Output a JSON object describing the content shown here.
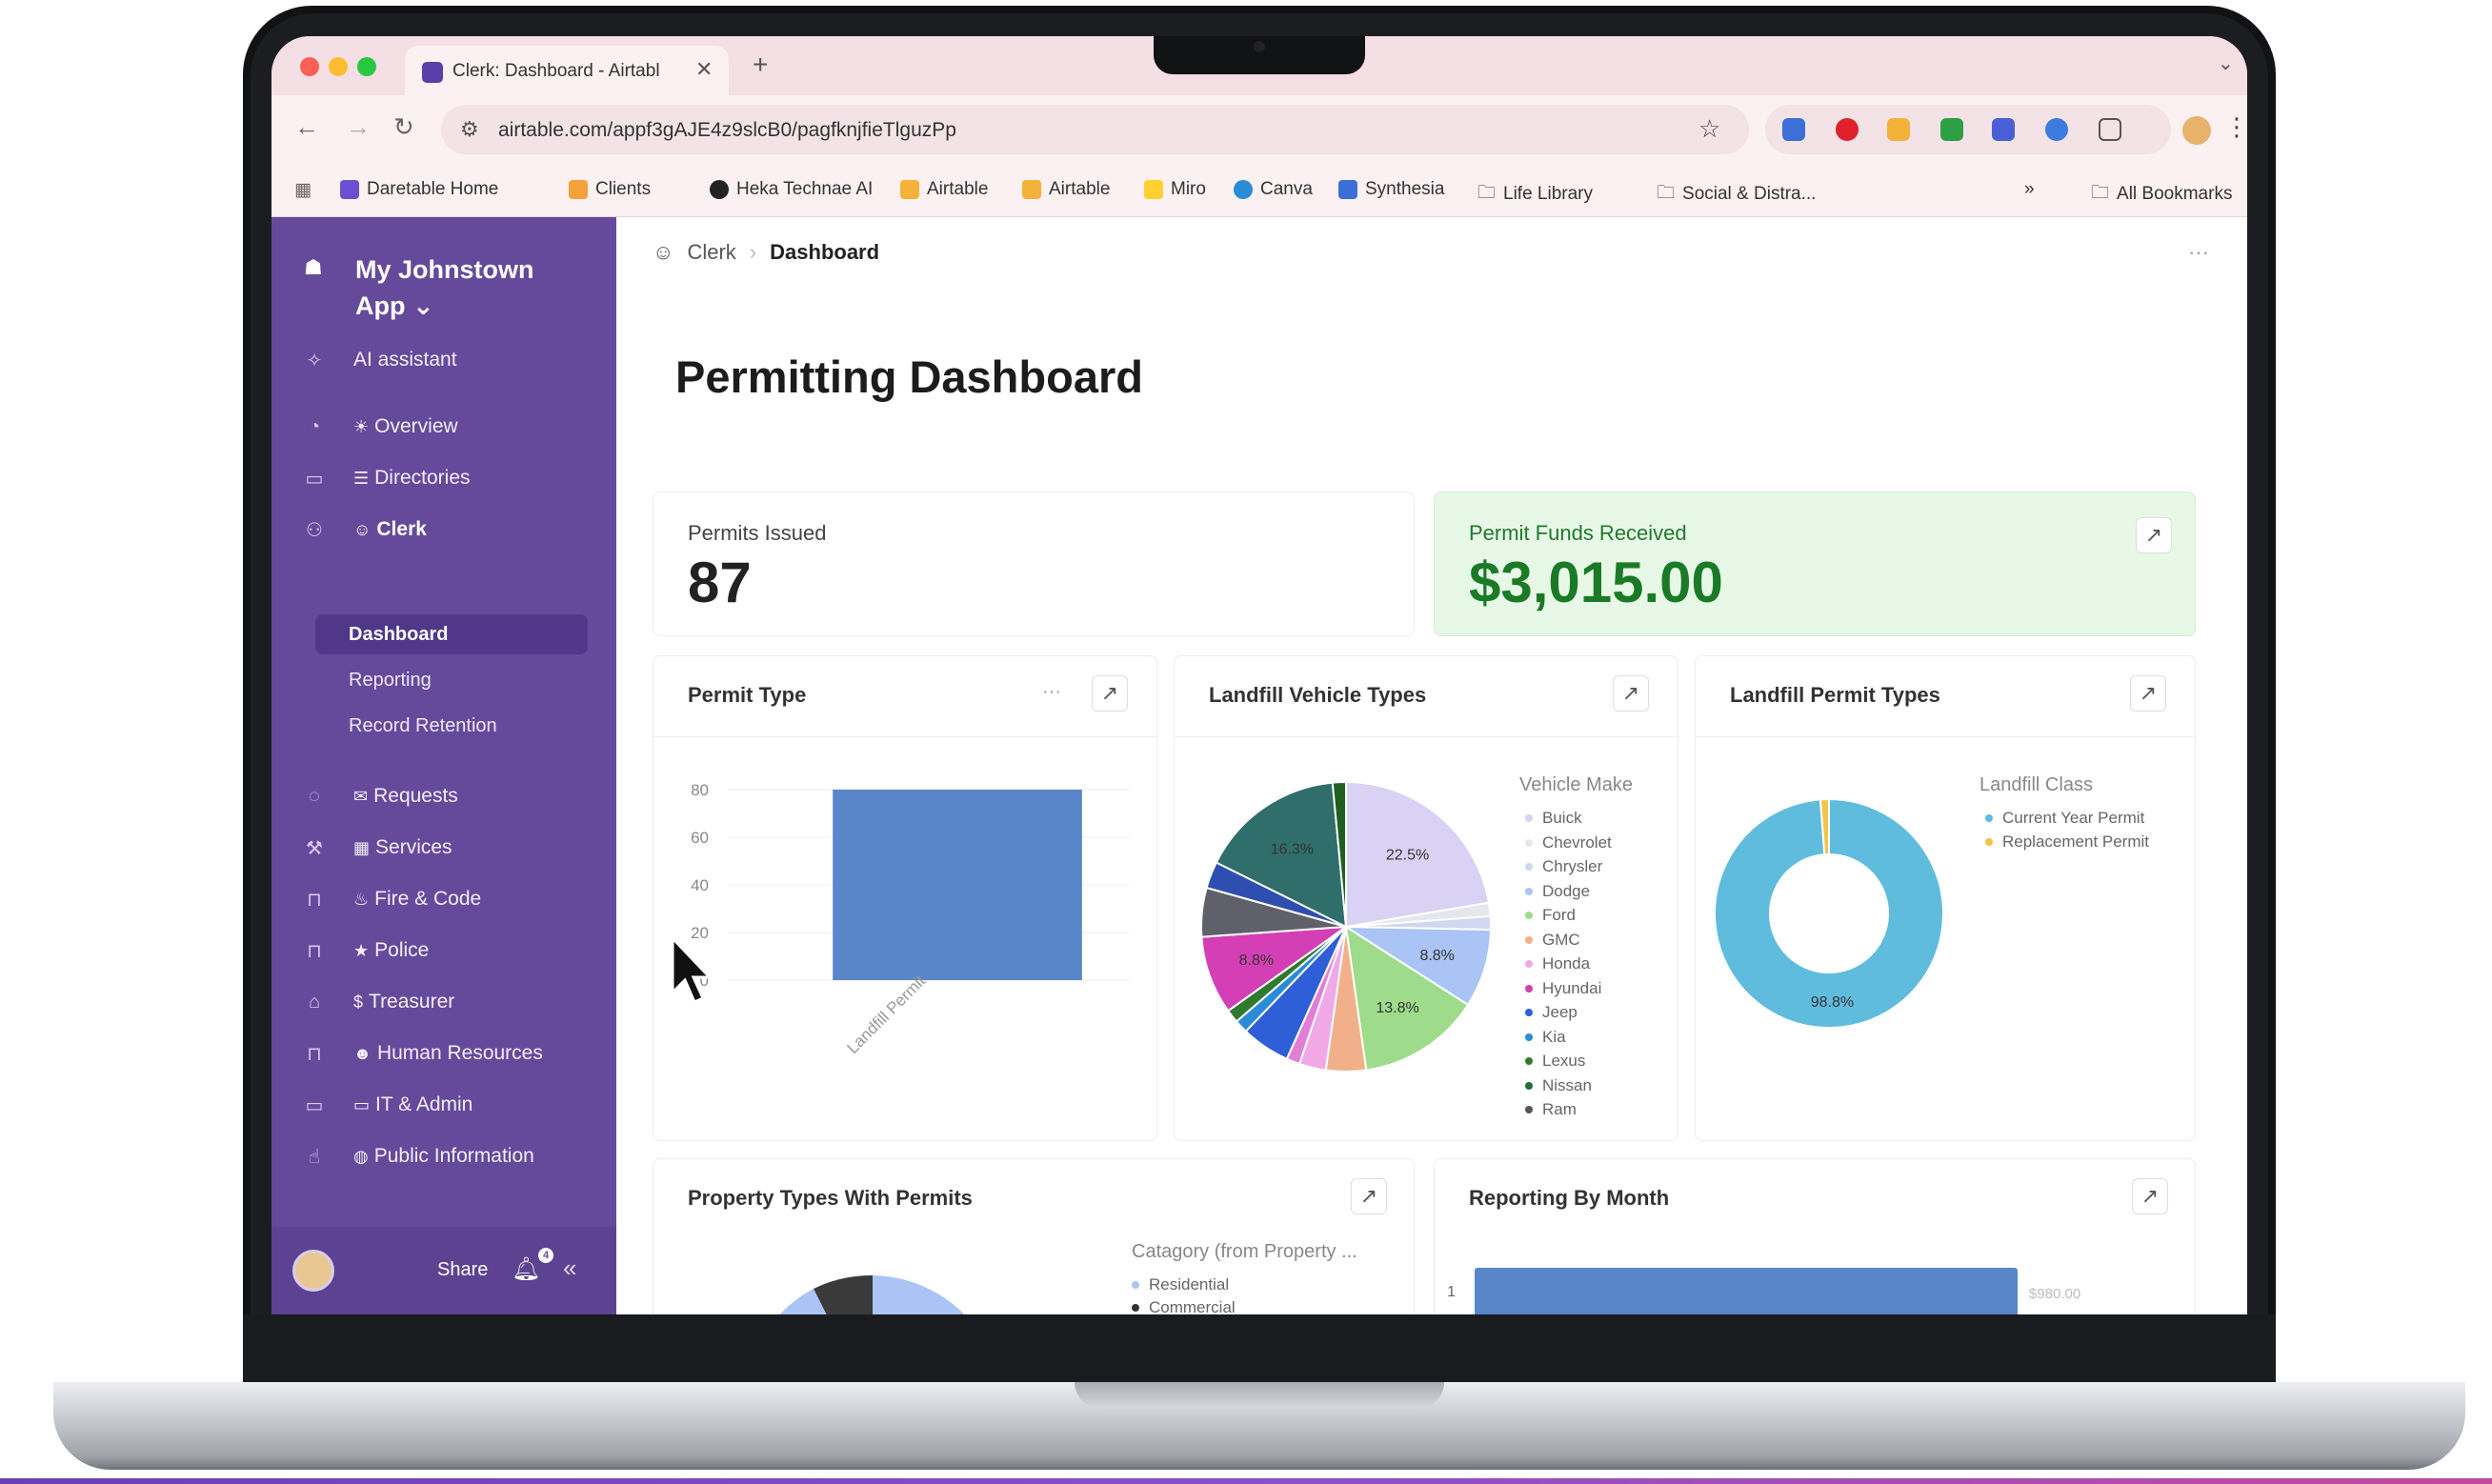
{
  "browser": {
    "tab_title": "Clerk: Dashboard - Airtabl",
    "url": "airtable.com/appf3gAJE4z9slcB0/pagfknjfieTlguzPp",
    "bookmarks": [
      {
        "label": "Daretable Home",
        "color": "#6a4fd1"
      },
      {
        "label": "Clients",
        "color": "#f4a23b"
      },
      {
        "label": "Heka Technae AI",
        "color": "#222222"
      },
      {
        "label": "Airtable",
        "color": "#f4b23b"
      },
      {
        "label": "Airtable",
        "color": "#f4b23b"
      },
      {
        "label": "Miro",
        "color": "#ffd02f"
      },
      {
        "label": "Canva",
        "color": "#2a8bd6"
      },
      {
        "label": "Synthesia",
        "color": "#3b6fd6"
      },
      {
        "label": "Life Library",
        "color": "#777777"
      },
      {
        "label": "Social & Distra...",
        "color": "#777777"
      }
    ],
    "all_bookmarks": "All Bookmarks"
  },
  "sidebar": {
    "app_name": "My Johnstown App",
    "ai_assistant": "AI assistant",
    "items": [
      {
        "label": "Overview",
        "emoji": "☀",
        "icon": "dashboard-icon"
      },
      {
        "label": "Directories",
        "emoji": "☰",
        "icon": "folder-icon"
      },
      {
        "label": "Clerk",
        "emoji": "☺",
        "icon": "users-icon"
      }
    ],
    "clerk_pages": [
      "Dashboard",
      "Reporting",
      "Record Retention"
    ],
    "sections": [
      {
        "label": "Requests",
        "emoji": "✉",
        "icon": "chat-icon"
      },
      {
        "label": "Services",
        "emoji": "▦",
        "icon": "tools-icon"
      },
      {
        "label": "Fire & Code",
        "emoji": "♨",
        "icon": "lock-icon"
      },
      {
        "label": "Police",
        "emoji": "★",
        "icon": "lock-icon"
      },
      {
        "label": "Treasurer",
        "emoji": "$",
        "icon": "store-icon"
      },
      {
        "label": "Human Resources",
        "emoji": "☻",
        "icon": "lock-icon"
      },
      {
        "label": "IT & Admin",
        "emoji": "▭",
        "icon": "monitor-icon"
      },
      {
        "label": "Public Information",
        "emoji": "◍",
        "icon": "hand-icon"
      }
    ],
    "share_label": "Share",
    "notification_count": "4"
  },
  "main": {
    "breadcrumb": [
      "Clerk",
      "Dashboard"
    ],
    "page_title": "Permitting Dashboard",
    "kpis": {
      "permits_label": "Permits Issued",
      "permits_value": "87",
      "funds_label": "Permit Funds Received",
      "funds_value": "$3,015.00"
    },
    "cards": {
      "permit_type": "Permit Type",
      "vehicle_types": "Landfill Vehicle Types",
      "permit_types": "Landfill Permit Types",
      "property_types": "Property Types With Permits",
      "reporting_month": "Reporting By Month"
    },
    "vehicle_legend_title": "Vehicle Make",
    "vehicle_legend": [
      {
        "label": "Buick",
        "color": "#d9d2f4"
      },
      {
        "label": "Chevrolet",
        "color": "#e6e6ee"
      },
      {
        "label": "Chrysler",
        "color": "#cfd8f0"
      },
      {
        "label": "Dodge",
        "color": "#a9c4f5"
      },
      {
        "label": "Ford",
        "color": "#9edc8c"
      },
      {
        "label": "GMC",
        "color": "#f2b08a"
      },
      {
        "label": "Honda",
        "color": "#f0a8e6"
      },
      {
        "label": "Hyundai",
        "color": "#d43fb5"
      },
      {
        "label": "Jeep",
        "color": "#2f5fd6"
      },
      {
        "label": "Kia",
        "color": "#2a8bd6"
      },
      {
        "label": "Lexus",
        "color": "#2f7a2f"
      },
      {
        "label": "Nissan",
        "color": "#1f6b3f"
      },
      {
        "label": "Ram",
        "color": "#555555"
      }
    ],
    "landfill_legend_title": "Landfill Class",
    "landfill_legend": [
      {
        "label": "Current Year Permit",
        "color": "#5fbcdd"
      },
      {
        "label": "Replacement Permit",
        "color": "#f2c44a"
      }
    ],
    "property_legend_title": "Catagory (from Property ...",
    "property_legend": [
      {
        "label": "Residential",
        "color": "#a9c4f5"
      },
      {
        "label": "Commercial",
        "color": "#333333"
      }
    ]
  },
  "chart_data": [
    {
      "type": "bar",
      "title": "Permit Type",
      "categories": [
        "Landfill Permit"
      ],
      "values": [
        87
      ],
      "ylim": [
        0,
        80
      ],
      "yticks": [
        "80",
        "60",
        "40",
        "20",
        "0"
      ],
      "color": "#5886c9"
    },
    {
      "type": "pie",
      "title": "Landfill Vehicle Types",
      "legend_title": "Vehicle Make",
      "slices": [
        {
          "label": "Buick",
          "value": 22.5,
          "color": "#d9d2f4",
          "text": "22.5%"
        },
        {
          "label": "Chevrolet",
          "value": 1.5,
          "color": "#e6e6ee",
          "text": ""
        },
        {
          "label": "Chrysler",
          "value": 1.5,
          "color": "#cfd8f0",
          "text": ""
        },
        {
          "label": "Dodge",
          "value": 8.8,
          "color": "#a9c4f5",
          "text": "8.8%"
        },
        {
          "label": "Ford",
          "value": 13.8,
          "color": "#9edc8c",
          "text": "13.8%"
        },
        {
          "label": "GMC",
          "value": 4.5,
          "color": "#f2b08a",
          "text": ""
        },
        {
          "label": "Honda",
          "value": 3,
          "color": "#f0a8e6",
          "text": ""
        },
        {
          "label": "Hyundai",
          "value": 1.5,
          "color": "#e07fd5",
          "text": ""
        },
        {
          "label": "Jeep",
          "value": 5.5,
          "color": "#2f5fd6",
          "text": ""
        },
        {
          "label": "Kia",
          "value": 1.5,
          "color": "#2a8bd6",
          "text": ""
        },
        {
          "label": "Lexus",
          "value": 1.5,
          "color": "#2f7a2f",
          "text": ""
        },
        {
          "label": "Hyundai",
          "value": 8.8,
          "color": "#d43fb5",
          "text": "8.8%"
        },
        {
          "label": "Ram",
          "value": 5.5,
          "color": "#60606a",
          "text": ""
        },
        {
          "label": "Jeep",
          "value": 3,
          "color": "#2f4fb0",
          "text": ""
        },
        {
          "label": "Nissan",
          "value": 16.3,
          "color": "#2f6e6a",
          "text": "16.3%"
        },
        {
          "label": "Lexus",
          "value": 1.5,
          "color": "#1f5f1f",
          "text": ""
        }
      ]
    },
    {
      "type": "pie",
      "title": "Landfill Permit Types",
      "legend_title": "Landfill Class",
      "slices": [
        {
          "label": "Current Year Permit",
          "value": 98.8,
          "color": "#5fbcdd",
          "text": "98.8%"
        },
        {
          "label": "Replacement Permit",
          "value": 1.2,
          "color": "#f2c44a",
          "text": ""
        }
      ]
    },
    {
      "type": "bar",
      "title": "Reporting By Month",
      "categories": [
        "1"
      ],
      "values": [
        980
      ],
      "labels": [
        "$980.00"
      ],
      "color": "#5886c9"
    }
  ]
}
